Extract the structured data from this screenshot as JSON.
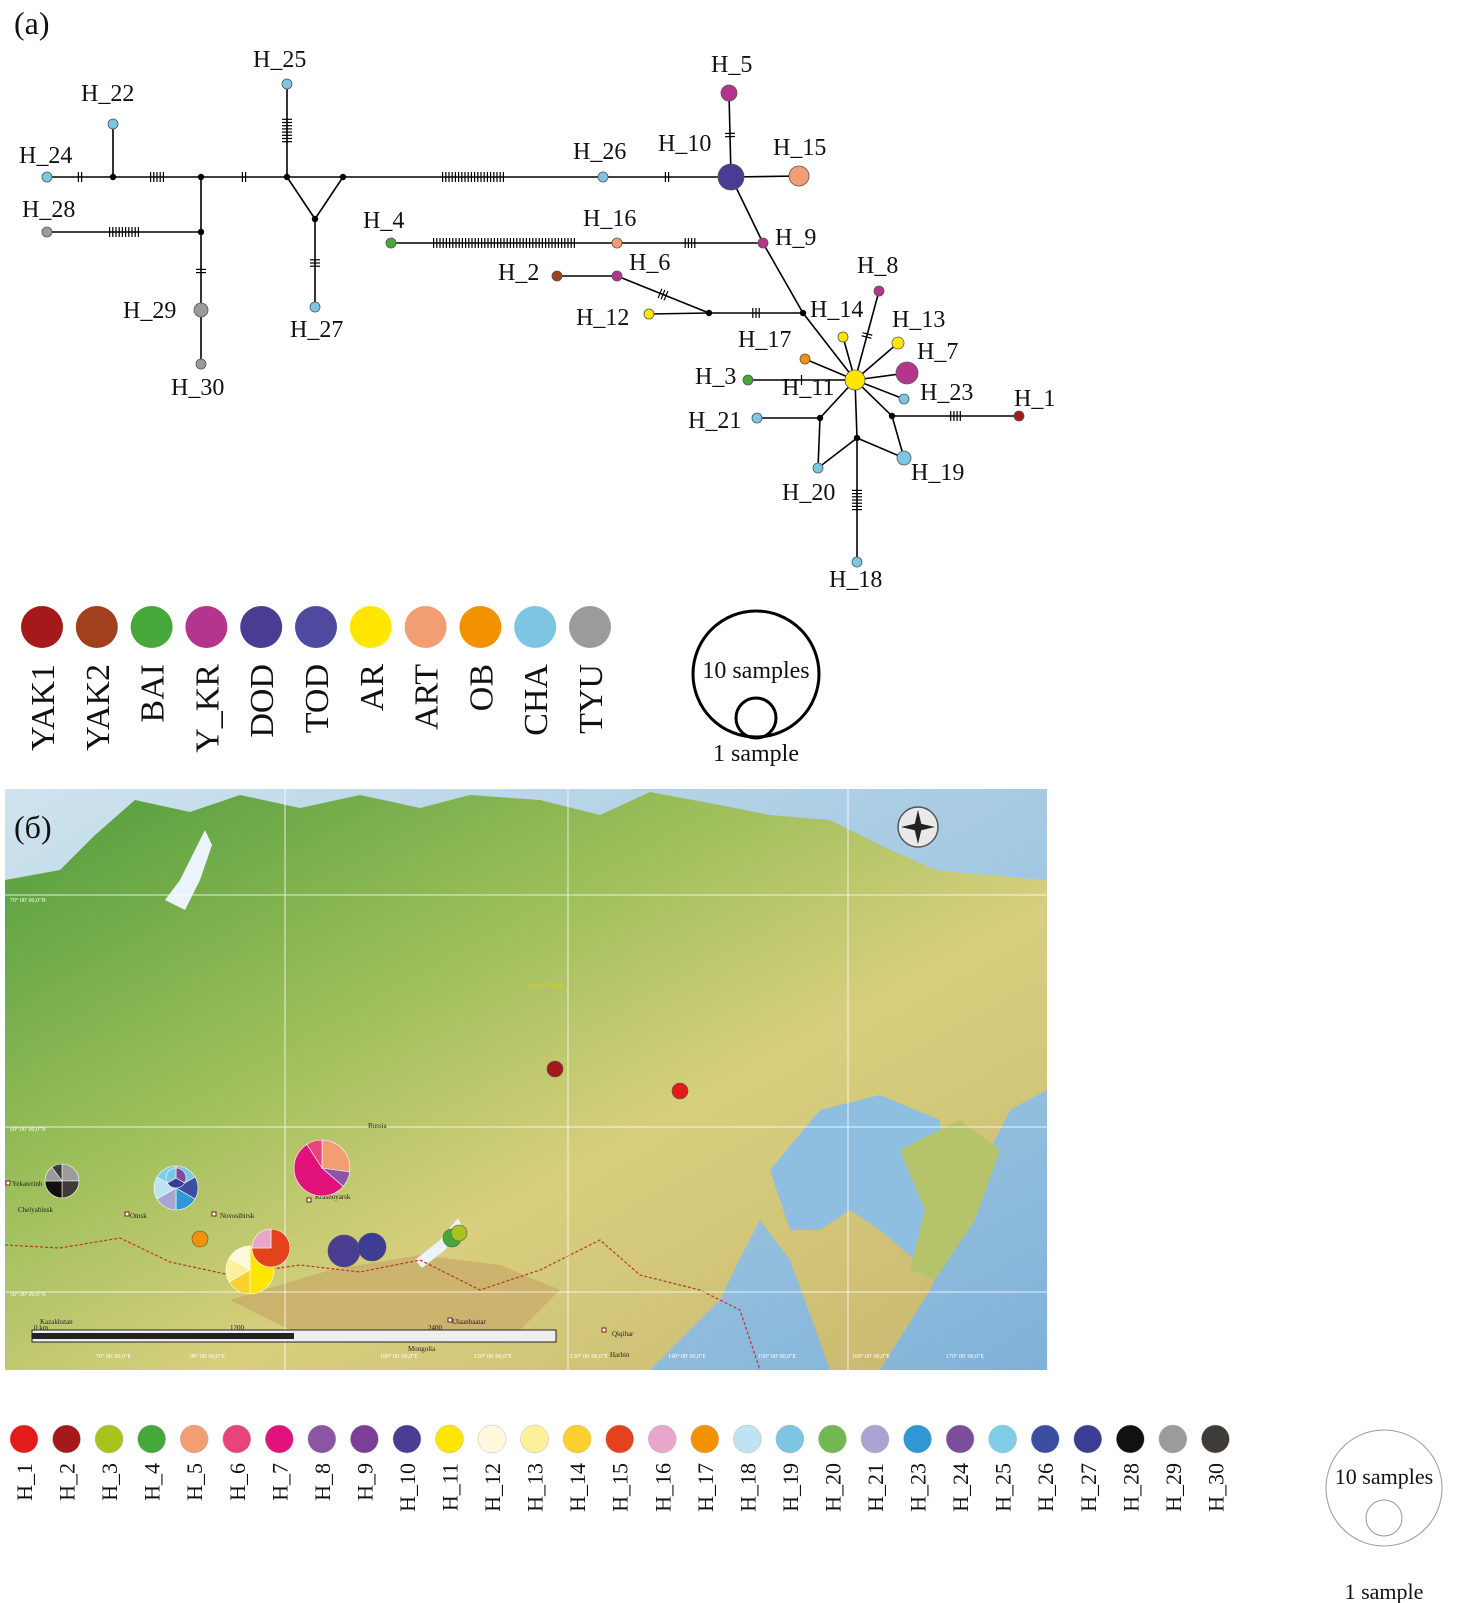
{
  "panel_a": {
    "label": "(a)",
    "nodes": [
      {
        "id": "H_1",
        "label": "H_1",
        "color": "#a5191b"
      },
      {
        "id": "H_2",
        "label": "H_2",
        "color": "#a0401f"
      },
      {
        "id": "H_3",
        "label": "H_3",
        "color": "#47a83a"
      },
      {
        "id": "H_4",
        "label": "H_4",
        "color": "#47a83a"
      },
      {
        "id": "H_5",
        "label": "H_5",
        "color": "#b4358d"
      },
      {
        "id": "H_6",
        "label": "H_6",
        "color": "#b4358d"
      },
      {
        "id": "H_7",
        "label": "H_7",
        "color": "#b4358d"
      },
      {
        "id": "H_8",
        "label": "H_8",
        "color": "#b4358d"
      },
      {
        "id": "H_9",
        "label": "H_9",
        "color": "#b4358d"
      },
      {
        "id": "H_10",
        "label": "H_10",
        "color": "#4a3c93"
      },
      {
        "id": "H_11",
        "label": "H_11",
        "color": "#ffe600"
      },
      {
        "id": "H_12",
        "label": "H_12",
        "color": "#ffe600"
      },
      {
        "id": "H_13",
        "label": "H_13",
        "color": "#ffe600"
      },
      {
        "id": "H_14",
        "label": "H_14",
        "color": "#ffe600"
      },
      {
        "id": "H_15",
        "label": "H_15",
        "color": "#f29e72"
      },
      {
        "id": "H_16",
        "label": "H_16",
        "color": "#f29e72"
      },
      {
        "id": "H_17",
        "label": "H_17",
        "color": "#f39200"
      },
      {
        "id": "H_18",
        "label": "H_18",
        "color": "#7cc6e2"
      },
      {
        "id": "H_19",
        "label": "H_19",
        "color": "#7cc6e2"
      },
      {
        "id": "H_20",
        "label": "H_20",
        "color": "#7cc6e2"
      },
      {
        "id": "H_21",
        "label": "H_21",
        "color": "#7cc6e2"
      },
      {
        "id": "H_22",
        "label": "H_22",
        "color": "#7cc6e2"
      },
      {
        "id": "H_23",
        "label": "H_23",
        "color": "#7cc6e2"
      },
      {
        "id": "H_24",
        "label": "H_24",
        "color": "#7cc6e2"
      },
      {
        "id": "H_25",
        "label": "H_25",
        "color": "#7cc6e2"
      },
      {
        "id": "H_26",
        "label": "H_26",
        "color": "#7cc6e2"
      },
      {
        "id": "H_27",
        "label": "H_27",
        "color": "#7cc6e2"
      },
      {
        "id": "H_28",
        "label": "H_28",
        "color": "#9b9b9b"
      },
      {
        "id": "H_29",
        "label": "H_29",
        "color": "#9b9b9b"
      },
      {
        "id": "H_30",
        "label": "H_30",
        "color": "#9b9b9b"
      }
    ],
    "legend": [
      {
        "code": "YAK1",
        "color": "#a5191b"
      },
      {
        "code": "YAK2",
        "color": "#a0401f"
      },
      {
        "code": "BAI",
        "color": "#47a83a"
      },
      {
        "code": "Y_KR",
        "color": "#b4358d"
      },
      {
        "code": "DOD",
        "color": "#4a3c93"
      },
      {
        "code": "TOD",
        "color": "#4f4aa0"
      },
      {
        "code": "AR",
        "color": "#ffe600"
      },
      {
        "code": "ART",
        "color": "#f29e72"
      },
      {
        "code": "OB",
        "color": "#f39200"
      },
      {
        "code": "CHA",
        "color": "#7cc6e2"
      },
      {
        "code": "TYU",
        "color": "#9b9b9b"
      }
    ],
    "scale": {
      "large": "10 samples",
      "small": "1 sample"
    }
  },
  "panel_b": {
    "label": "(б)",
    "map_labels": {
      "russia": "Russia",
      "krasnoyarsk": "Krasnoyarsk",
      "novosibirsk": "Novosibirsk",
      "omsk": "Omsk",
      "yekaterinburg": "Yekaterinb",
      "chelyabinsk": "Chelyabinsk",
      "kazakhstan": "Kazakhstan",
      "mongolia": "Mongolia",
      "ulaanbaatar": "Ulaanbaatar",
      "qiqihar": "Qiqihar",
      "harbin": "Harbin",
      "arctic_circle": "Arctic Circle"
    },
    "lat_labels": [
      "70° 00' 00,0\"N",
      "60° 00' 00,0\"N",
      "50° 00' 00,0\"N"
    ],
    "lon_labels": [
      "70° 00' 00,0\"E",
      "90° 00' 00,0\"E",
      "100° 00' 00,0\"E",
      "120° 00' 00,0\"E",
      "130° 00' 00,0\"E",
      "140° 00' 00,0\"E",
      "150° 00' 00,0\"E",
      "160° 00' 00,0\"E",
      "170° 00' 00,0\"E"
    ],
    "scalebar": [
      "0 km",
      "1200",
      "2400"
    ],
    "legend": [
      {
        "code": "H_1",
        "color": "#e31b1b"
      },
      {
        "code": "H_2",
        "color": "#a5191b"
      },
      {
        "code": "H_3",
        "color": "#a7c41d"
      },
      {
        "code": "H_4",
        "color": "#47a83a"
      },
      {
        "code": "H_5",
        "color": "#f29e72"
      },
      {
        "code": "H_6",
        "color": "#e8437a"
      },
      {
        "code": "H_7",
        "color": "#e2127d"
      },
      {
        "code": "H_8",
        "color": "#8a55a5"
      },
      {
        "code": "H_9",
        "color": "#7b3f98"
      },
      {
        "code": "H_10",
        "color": "#4a3c93"
      },
      {
        "code": "H_11",
        "color": "#ffe600"
      },
      {
        "code": "H_12",
        "color": "#fff8dc"
      },
      {
        "code": "H_13",
        "color": "#fdf09b"
      },
      {
        "code": "H_14",
        "color": "#fcd12e"
      },
      {
        "code": "H_15",
        "color": "#e4421c"
      },
      {
        "code": "H_16",
        "color": "#e9a6cb"
      },
      {
        "code": "H_17",
        "color": "#f39200"
      },
      {
        "code": "H_18",
        "color": "#bfe3f2"
      },
      {
        "code": "H_19",
        "color": "#7cc6e2"
      },
      {
        "code": "H_20",
        "color": "#71b850"
      },
      {
        "code": "H_21",
        "color": "#a9a4d3"
      },
      {
        "code": "H_23",
        "color": "#2f98d4"
      },
      {
        "code": "H_24",
        "color": "#7b4e9c"
      },
      {
        "code": "H_25",
        "color": "#7fcde6"
      },
      {
        "code": "H_26",
        "color": "#3c4ea1"
      },
      {
        "code": "H_27",
        "color": "#3b3d94"
      },
      {
        "code": "H_28",
        "color": "#111111"
      },
      {
        "code": "H_29",
        "color": "#9b9b9b"
      },
      {
        "code": "H_30",
        "color": "#3f3b39"
      }
    ],
    "scale": {
      "large": "10 samples",
      "small": "1 sample"
    }
  }
}
